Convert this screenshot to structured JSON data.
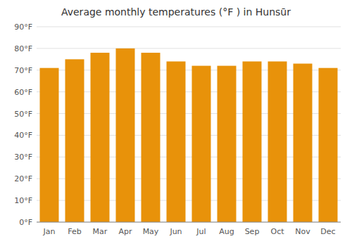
{
  "chart_data": {
    "type": "bar",
    "title": "Average monthly temperatures (°F ) in Hunsūr",
    "categories": [
      "Jan",
      "Feb",
      "Mar",
      "Apr",
      "May",
      "Jun",
      "Jul",
      "Aug",
      "Sep",
      "Oct",
      "Nov",
      "Dec"
    ],
    "values": [
      71,
      75,
      78,
      80,
      78,
      74,
      72,
      72,
      74,
      74,
      73,
      71
    ],
    "color": "#E8920A",
    "ylim": [
      0,
      90
    ],
    "yticks": [
      {
        "value": 0,
        "label": "0°F"
      },
      {
        "value": 10,
        "label": "10°F"
      },
      {
        "value": 20,
        "label": "20°F"
      },
      {
        "value": 30,
        "label": "30°F"
      },
      {
        "value": 40,
        "label": "40°F"
      },
      {
        "value": 50,
        "label": "50°F"
      },
      {
        "value": 60,
        "label": "60°F"
      },
      {
        "value": 70,
        "label": "70°F"
      },
      {
        "value": 80,
        "label": "80°F"
      },
      {
        "value": 90,
        "label": "90°F"
      }
    ],
    "grid": true
  }
}
